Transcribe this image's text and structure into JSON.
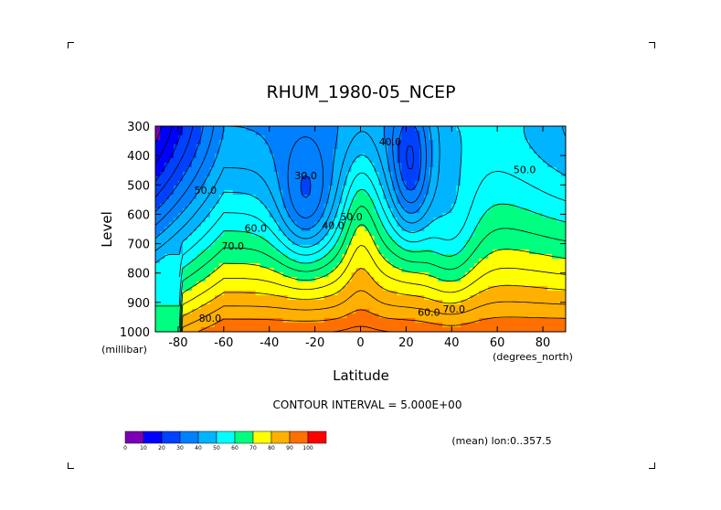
{
  "chart_data": {
    "type": "heatmap",
    "title": "RHUM_1980-05_NCEP",
    "xlabel": "Latitude",
    "ylabel": "Level",
    "x_units": "(degrees_north)",
    "y_units": "(millibar)",
    "contour_interval_text": "CONTOUR INTERVAL = 5.000E+00",
    "subtitle": "(mean) lon:0..357.5",
    "xlim": [
      -90,
      90
    ],
    "ylim": [
      1000,
      300
    ],
    "x_ticks": [
      -80,
      -60,
      -40,
      -20,
      0,
      20,
      40,
      60,
      80
    ],
    "x_tick_labels": [
      "-80",
      "-60",
      "-40",
      "-20",
      "0",
      "20",
      "40",
      "60",
      "80"
    ],
    "y_ticks": [
      300,
      400,
      500,
      600,
      700,
      800,
      900,
      1000
    ],
    "y_tick_labels": [
      "300",
      "400",
      "500",
      "600",
      "700",
      "800",
      "900",
      "1000"
    ],
    "contour_labels": [
      {
        "text": "40.0",
        "lat": 13,
        "level": 365
      },
      {
        "text": "50.0",
        "lat": 72,
        "level": 460
      },
      {
        "text": "30.0",
        "lat": -24,
        "level": 480
      },
      {
        "text": "50.0",
        "lat": -68,
        "level": 530
      },
      {
        "text": "50.0",
        "lat": -4,
        "level": 620
      },
      {
        "text": "40.0",
        "lat": -12,
        "level": 650
      },
      {
        "text": "60.0",
        "lat": -46,
        "level": 660
      },
      {
        "text": "70.0",
        "lat": -56,
        "level": 720
      },
      {
        "text": "60.0",
        "lat": 30,
        "level": 945
      },
      {
        "text": "70.0",
        "lat": 41,
        "level": 935
      },
      {
        "text": "80.0",
        "lat": -66,
        "level": 965
      }
    ],
    "colorbar": {
      "levels": [
        0,
        10,
        20,
        30,
        40,
        50,
        60,
        70,
        80,
        90,
        100
      ],
      "colors": [
        "#7b00b5",
        "#0000ff",
        "#0040ff",
        "#0080ff",
        "#00b4ff",
        "#00ffff",
        "#00ff80",
        "#ffff00",
        "#ffb000",
        "#ff7000",
        "#ff0000"
      ],
      "tick_labels": [
        "0",
        "10",
        "20",
        "30",
        "40",
        "50",
        "60",
        "70",
        "80",
        "90",
        "100"
      ]
    }
  }
}
